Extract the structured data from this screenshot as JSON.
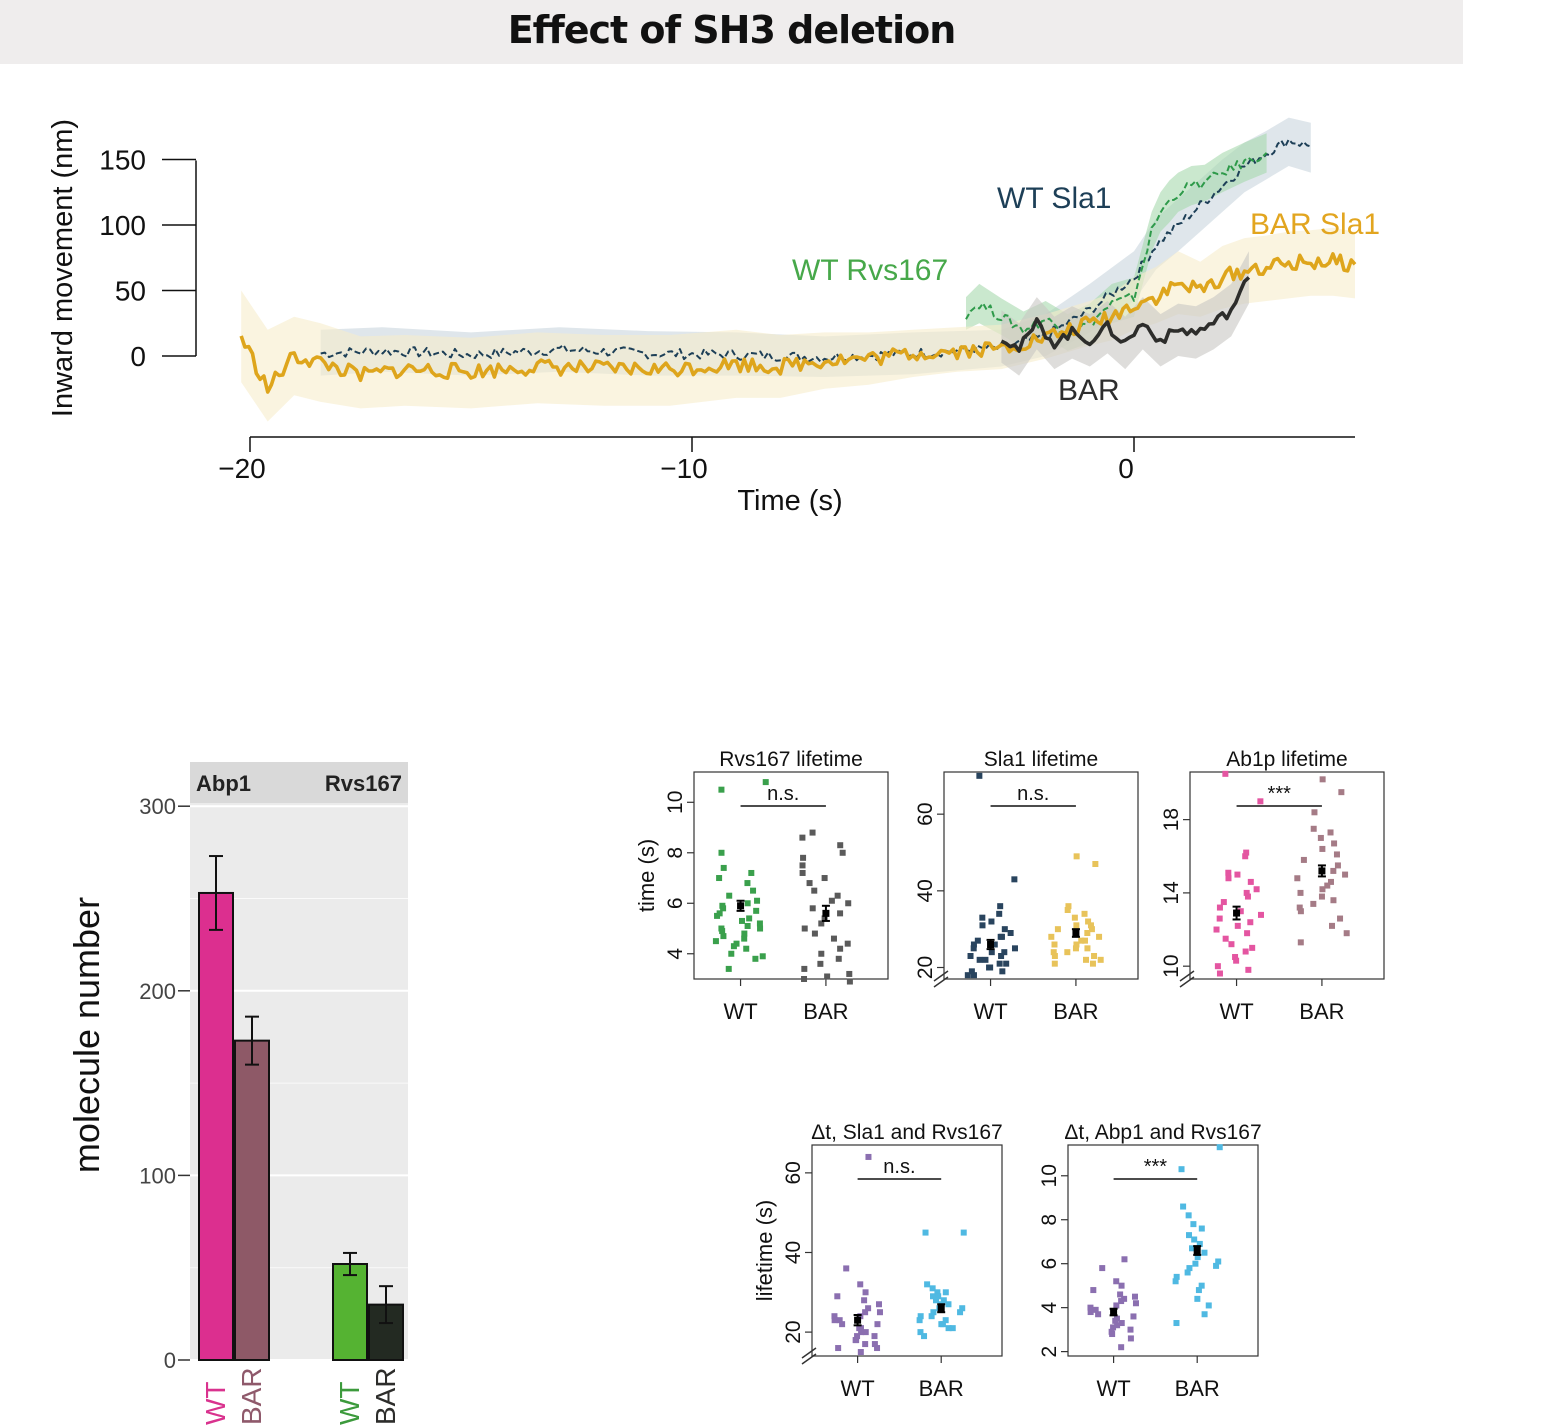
{
  "title": "Effect of SH3 deletion",
  "chart_data": [
    {
      "id": "movement",
      "type": "line",
      "xlabel": "Time (s)",
      "ylabel": "Inward movement (nm)",
      "xlim": [
        -20,
        5
      ],
      "ylim": [
        -20,
        180
      ],
      "x_ticks": [
        -20,
        -10,
        0
      ],
      "x_tick_labels": [
        "−20",
        "−10",
        "0"
      ],
      "y_ticks": [
        0,
        50,
        100,
        150
      ],
      "y_tick_labels": [
        "0",
        "50",
        "100",
        "150"
      ],
      "grid": false,
      "series": [
        {
          "name": "WT Sla1",
          "color": "#1d3f57",
          "dash": true,
          "band_color": "#c9d6de",
          "x": [
            -18.4,
            -17,
            -15,
            -13,
            -11,
            -9,
            -7,
            -5,
            -3,
            -2,
            -1,
            0,
            0.5,
            1,
            1.5,
            2,
            2.5,
            3,
            3.5,
            4
          ],
          "y": [
            2,
            4,
            1,
            5,
            2,
            1,
            -1,
            2,
            6,
            15,
            35,
            60,
            85,
            100,
            115,
            130,
            145,
            155,
            165,
            160
          ],
          "band_lo": [
            -15,
            -12,
            -15,
            -12,
            -15,
            -15,
            -16,
            -14,
            -8,
            0,
            18,
            42,
            66,
            80,
            95,
            110,
            125,
            135,
            145,
            140
          ],
          "band_hi": [
            20,
            22,
            18,
            22,
            19,
            18,
            15,
            18,
            20,
            32,
            55,
            80,
            105,
            120,
            135,
            150,
            163,
            172,
            182,
            178
          ]
        },
        {
          "name": "WT Rvs167",
          "color": "#2e9a4a",
          "dash": true,
          "band_color": "#a6d8ae",
          "x": [
            -3.8,
            -3.5,
            -3,
            -2.5,
            -2,
            -1.5,
            -1,
            -0.5,
            0,
            0.2,
            0.4,
            0.6,
            0.8,
            1,
            1.3,
            1.6,
            2,
            2.5,
            3
          ],
          "y": [
            32,
            40,
            30,
            20,
            28,
            18,
            25,
            40,
            45,
            70,
            95,
            110,
            118,
            125,
            130,
            132,
            140,
            148,
            155
          ],
          "band_lo": [
            20,
            25,
            16,
            6,
            14,
            4,
            10,
            25,
            30,
            55,
            80,
            95,
            102,
            110,
            115,
            118,
            125,
            133,
            140
          ],
          "band_hi": [
            45,
            55,
            44,
            34,
            42,
            32,
            40,
            55,
            60,
            85,
            110,
            125,
            134,
            140,
            145,
            146,
            155,
            163,
            170
          ]
        },
        {
          "name": "BAR Sla1",
          "color": "#dea51c",
          "dash": false,
          "band_color": "#f7eccb",
          "x": [
            -20.2,
            -19.6,
            -19,
            -18.4,
            -17.5,
            -16.5,
            -15,
            -13.5,
            -12,
            -10.5,
            -9,
            -8,
            -7,
            -6,
            -5,
            -4,
            -3,
            -2,
            -1,
            -0.5,
            0,
            0.5,
            1,
            1.5,
            2,
            2.5,
            3,
            3.5,
            4,
            4.5,
            5
          ],
          "y": [
            15,
            -25,
            0,
            -5,
            -15,
            -10,
            -12,
            -8,
            -10,
            -10,
            -6,
            -8,
            -3,
            -2,
            2,
            4,
            6,
            14,
            25,
            30,
            40,
            45,
            55,
            50,
            60,
            65,
            68,
            70,
            72,
            72,
            70
          ],
          "band_lo": [
            -20,
            -50,
            -30,
            -35,
            -40,
            -38,
            -40,
            -36,
            -38,
            -38,
            -32,
            -32,
            -25,
            -22,
            -16,
            -12,
            -10,
            -2,
            8,
            12,
            20,
            25,
            32,
            30,
            36,
            40,
            42,
            44,
            46,
            46,
            44
          ],
          "band_hi": [
            50,
            20,
            30,
            25,
            15,
            16,
            14,
            18,
            16,
            16,
            20,
            16,
            18,
            18,
            20,
            22,
            24,
            32,
            42,
            48,
            60,
            68,
            80,
            72,
            84,
            90,
            92,
            95,
            96,
            98,
            95
          ]
        },
        {
          "name": "BAR",
          "color": "#2d2d2b",
          "dash": false,
          "band_color": "#c8c7c3",
          "x": [
            -3,
            -2.6,
            -2.2,
            -1.8,
            -1.4,
            -1,
            -0.6,
            -0.2,
            0.2,
            0.6,
            1,
            1.4,
            1.8,
            2.2,
            2.6
          ],
          "y": [
            15,
            5,
            25,
            10,
            18,
            12,
            22,
            10,
            25,
            12,
            20,
            18,
            25,
            35,
            60
          ],
          "band_lo": [
            -5,
            -15,
            5,
            -10,
            -2,
            -8,
            2,
            -10,
            5,
            -8,
            0,
            -2,
            5,
            15,
            40
          ],
          "band_hi": [
            35,
            25,
            45,
            30,
            38,
            32,
            42,
            30,
            45,
            32,
            40,
            38,
            45,
            55,
            80
          ]
        }
      ],
      "labels": [
        {
          "text": "WT Sla1",
          "color": "#1d3f57"
        },
        {
          "text": "WT Rvs167",
          "color": "#47a84a"
        },
        {
          "text": "BAR Sla1",
          "color": "#e2a51f"
        },
        {
          "text": "BAR",
          "color": "#2d2d2d"
        }
      ]
    },
    {
      "id": "molecules",
      "type": "bar",
      "ylabel": "molecule number",
      "ylim": [
        0,
        330
      ],
      "y_ticks": [
        0,
        100,
        200,
        300
      ],
      "y_tick_labels": [
        "0",
        "100",
        "200",
        "300"
      ],
      "grid": true,
      "groups": [
        "Abp1",
        "Rvs167"
      ],
      "categories": [
        "WT",
        "BAR",
        "WT",
        "BAR"
      ],
      "category_colors": [
        "#d9328e",
        "#8f596b",
        "#3c9a3c",
        "#2d2d2b"
      ],
      "values": [
        253,
        173,
        52,
        30
      ],
      "error": [
        20,
        13,
        6,
        10
      ],
      "bar_colors": [
        "#dc2f8f",
        "#8e5967",
        "#55b332",
        "#232a22"
      ]
    },
    {
      "id": "rvs-lifetime",
      "type": "scatter",
      "title": "Rvs167 lifetime",
      "ylabel": "time (s)",
      "ylim": [
        3,
        11.2
      ],
      "y_ticks": [
        4,
        6,
        8,
        10
      ],
      "axis_break": false,
      "categories": [
        "WT",
        "BAR"
      ],
      "colors": [
        "#3aa04c",
        "#5a5a5a"
      ],
      "points": [
        [
          10.8,
          10.5,
          8,
          7.4,
          7.2,
          7,
          6.8,
          6.5,
          6.3,
          6.1,
          6,
          5.9,
          5.8,
          5.7,
          5.6,
          5.5,
          5.4,
          5.3,
          5.2,
          5.1,
          5,
          5,
          4.9,
          4.8,
          4.7,
          4.6,
          4.5,
          4.4,
          4.3,
          4.2,
          4,
          3.9,
          3.8,
          3.4
        ],
        [
          8.8,
          8.6,
          8.3,
          8,
          7.8,
          7.5,
          7.2,
          7,
          6.8,
          6.5,
          6.3,
          6.1,
          6,
          5.8,
          5.6,
          5.4,
          5.2,
          5,
          4.8,
          4.6,
          4.4,
          4.2,
          4,
          3.8,
          3.6,
          3.4,
          3.2,
          3.1,
          3,
          2.9
        ]
      ],
      "means": [
        5.9,
        5.6
      ],
      "sem": [
        0.2,
        0.3
      ],
      "significance": "n.s."
    },
    {
      "id": "sla1-lifetime",
      "type": "scatter",
      "title": "Sla1 lifetime",
      "ylabel": "",
      "ylim": [
        17,
        71
      ],
      "y_ticks": [
        20,
        40,
        60
      ],
      "axis_break": true,
      "categories": [
        "WT",
        "BAR"
      ],
      "colors": [
        "#29445e",
        "#e8c35a"
      ],
      "points": [
        [
          70,
          43,
          36,
          34,
          33,
          32,
          31,
          30,
          29,
          28,
          28,
          27,
          26,
          26,
          25,
          25,
          24,
          24,
          23,
          23,
          22,
          22,
          21,
          21,
          20,
          20,
          19,
          19,
          18,
          18
        ],
        [
          49,
          47,
          36,
          35,
          34,
          33,
          32,
          31,
          31,
          30,
          30,
          29,
          28,
          28,
          27,
          27,
          26,
          26,
          25,
          25,
          24,
          24,
          23,
          23,
          22,
          22,
          21,
          21
        ]
      ],
      "means": [
        26,
        29
      ],
      "sem": [
        1.2,
        1.0
      ],
      "significance": "n.s."
    },
    {
      "id": "abp1-lifetime",
      "type": "scatter",
      "title": "Ab1p lifetime",
      "ylabel": "",
      "ylim": [
        9.3,
        20.6
      ],
      "y_ticks": [
        10,
        14,
        18
      ],
      "axis_break": true,
      "categories": [
        "WT",
        "BAR"
      ],
      "colors": [
        "#e455a1",
        "#a57b86"
      ],
      "points": [
        [
          20.5,
          19,
          16.2,
          16,
          15.1,
          15,
          14.8,
          14.6,
          14.2,
          14,
          13.8,
          13.5,
          13.2,
          13,
          12.8,
          12.6,
          12.4,
          12.2,
          12,
          11.8,
          11.5,
          11.2,
          11,
          10.8,
          10.5,
          10.3,
          10,
          9.8,
          9.6
        ],
        [
          20.2,
          19.5,
          18.4,
          17.5,
          17.3,
          17,
          16.7,
          16.4,
          16.1,
          15.8,
          15.5,
          15.2,
          15,
          14.8,
          14.6,
          14.4,
          14.2,
          14,
          13.8,
          13.6,
          13.4,
          13.2,
          13,
          12.6,
          12.2,
          11.8,
          11.3
        ]
      ],
      "means": [
        12.9,
        15.2
      ],
      "sem": [
        0.35,
        0.3
      ],
      "significance": "***"
    },
    {
      "id": "dt-sla1-rvs",
      "type": "scatter",
      "title": "Δt, Sla1 and Rvs167",
      "ylabel": "lifetime (s)",
      "ylim": [
        14,
        67
      ],
      "y_ticks": [
        20,
        40,
        60
      ],
      "axis_break": true,
      "categories": [
        "WT",
        "BAR"
      ],
      "colors": [
        "#8b6fb0",
        "#4fb9e2"
      ],
      "points": [
        [
          64,
          36,
          32,
          30,
          29,
          28,
          27,
          26,
          25,
          25,
          24,
          24,
          23,
          23,
          22,
          22,
          21,
          21,
          20,
          20,
          19,
          19,
          18,
          18,
          17,
          17,
          16,
          16,
          15
        ],
        [
          45,
          45,
          32,
          31,
          30,
          30,
          29,
          29,
          28,
          28,
          27,
          27,
          26,
          26,
          25,
          25,
          24,
          24,
          23,
          23,
          22,
          22,
          21,
          21,
          20,
          19
        ]
      ],
      "means": [
        23,
        26
      ],
      "sem": [
        1.3,
        1.0
      ],
      "significance": "n.s."
    },
    {
      "id": "dt-abp1-rvs",
      "type": "scatter",
      "title": "Δt, Abp1 and Rvs167",
      "ylabel": "",
      "ylim": [
        1.8,
        11.4
      ],
      "y_ticks": [
        2,
        4,
        6,
        8,
        10
      ],
      "axis_break": false,
      "categories": [
        "WT",
        "BAR"
      ],
      "colors": [
        "#8b6fb0",
        "#4fb9e2"
      ],
      "points": [
        [
          6.2,
          5.8,
          5.2,
          5,
          4.8,
          4.6,
          4.5,
          4.4,
          4.3,
          4.2,
          4.1,
          4,
          3.9,
          3.8,
          3.7,
          3.6,
          3.5,
          3.4,
          3.3,
          3.2,
          3.1,
          3,
          2.9,
          2.8,
          2.6,
          2.2
        ],
        [
          11.3,
          10.3,
          8.6,
          8.2,
          7.8,
          7.6,
          7.3,
          7.1,
          6.9,
          6.7,
          6.5,
          6.3,
          6.1,
          6,
          5.9,
          5.8,
          5.6,
          5.4,
          5.2,
          5,
          4.8,
          4.4,
          4.1,
          3.7,
          3.3
        ]
      ],
      "means": [
        3.8,
        6.6
      ],
      "sem": [
        0.15,
        0.2
      ],
      "significance": "***"
    }
  ]
}
